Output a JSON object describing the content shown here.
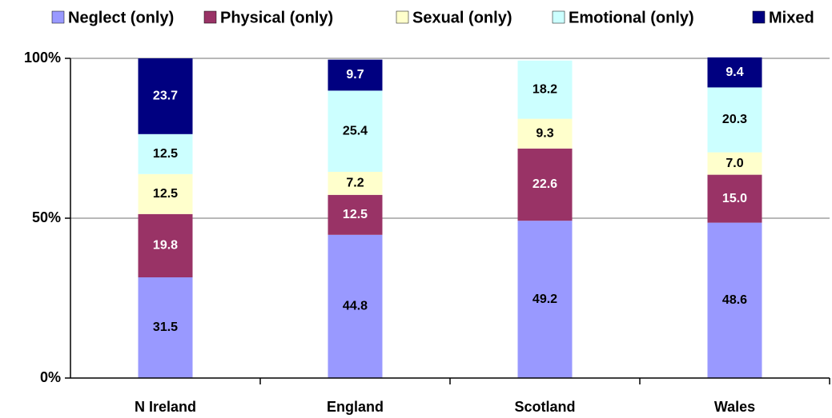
{
  "chart_data": {
    "type": "stacked-bar",
    "categories": [
      "N Ireland",
      "England",
      "Scotland",
      "Wales"
    ],
    "series": [
      {
        "name": "Neglect (only)",
        "color": "#9999ff",
        "values": [
          31.5,
          44.8,
          49.2,
          48.6
        ],
        "value_labels": [
          "31.5",
          "44.8",
          "49.2",
          "48.6"
        ]
      },
      {
        "name": "Physical (only)",
        "color": "#993366",
        "values": [
          19.8,
          12.5,
          22.6,
          15.0
        ],
        "value_labels": [
          "19.8",
          "12.5",
          "22.6",
          "15.0"
        ]
      },
      {
        "name": "Sexual (only)",
        "color": "#ffffcc",
        "values": [
          12.5,
          7.2,
          9.3,
          7.0
        ],
        "value_labels": [
          "12.5",
          "7.2",
          "9.3",
          "7.0"
        ]
      },
      {
        "name": "Emotional (only)",
        "color": "#ccffff",
        "values": [
          12.5,
          25.4,
          18.2,
          20.3
        ],
        "value_labels": [
          "12.5",
          "25.4",
          "18.2",
          "20.3"
        ]
      },
      {
        "name": "Mixed",
        "color": "#000080",
        "values": [
          23.7,
          9.7,
          null,
          9.4
        ],
        "value_labels": [
          "23.7",
          "9.7",
          null,
          "9.4"
        ]
      }
    ],
    "ylim": [
      0,
      100
    ],
    "yticks": [
      {
        "value": 0,
        "label": "0%"
      },
      {
        "value": 50,
        "label": "50%"
      },
      {
        "value": 100,
        "label": "100%"
      }
    ],
    "grid": true,
    "legend": "top"
  }
}
